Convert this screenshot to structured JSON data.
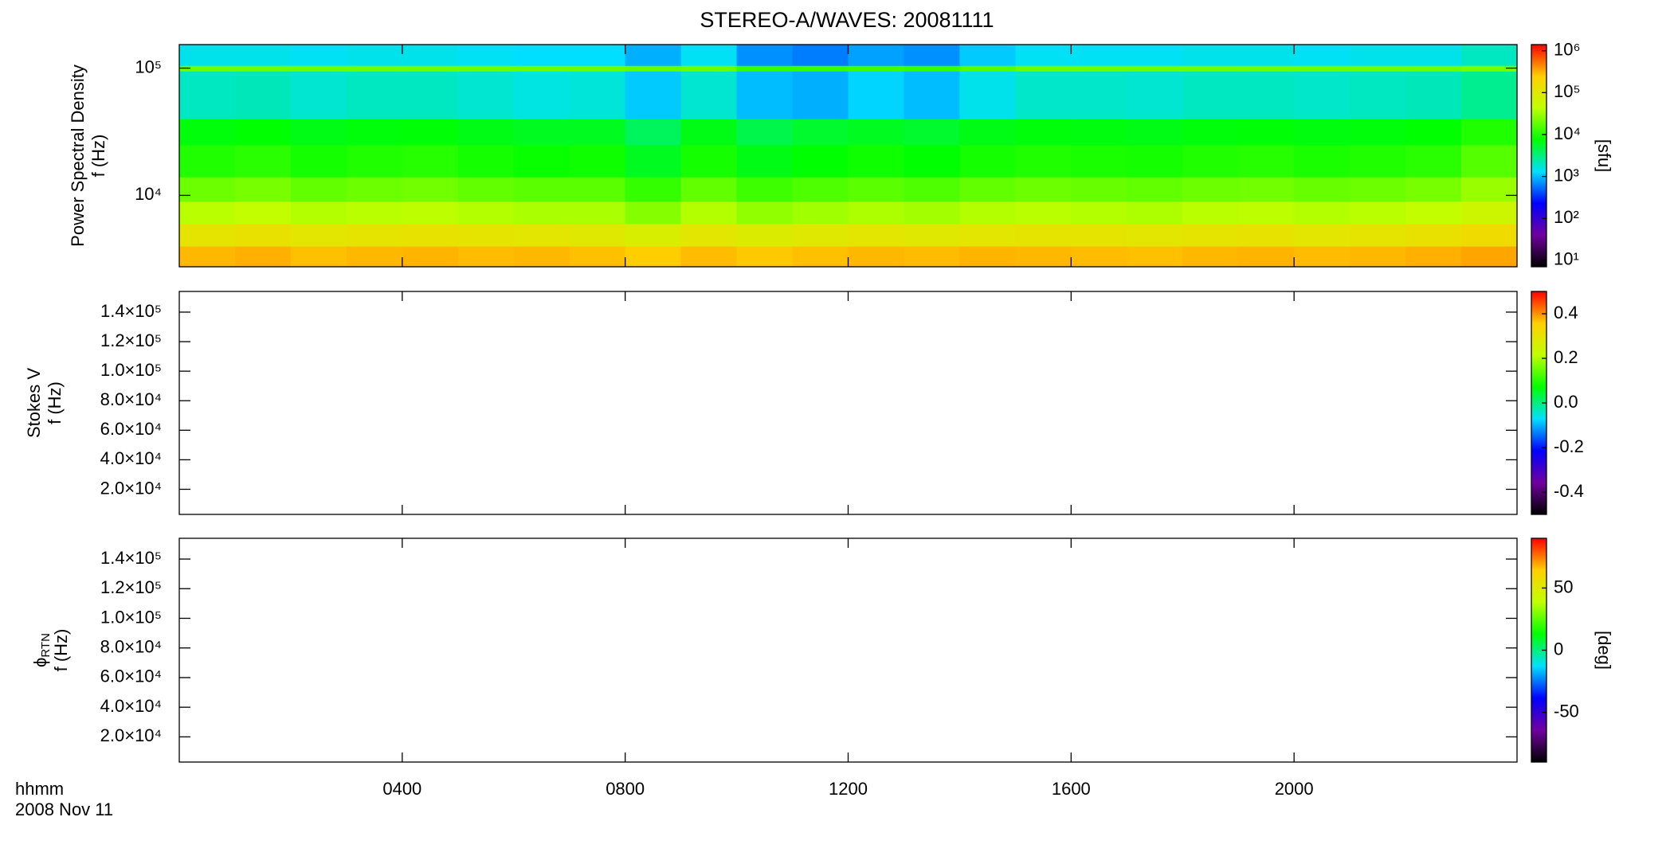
{
  "chart_data": [
    {
      "type": "heatmap",
      "title": "STEREO-A/WAVES: 20081111",
      "quantity": "Power Spectral Density",
      "ylabel": "f (Hz)",
      "clabel": "[sfu]",
      "ylog": true,
      "ylim": [
        2750,
        153000
      ],
      "yticks": [
        {
          "value": 10000,
          "label": "10⁴"
        },
        {
          "value": 100000,
          "label": "10⁵"
        }
      ],
      "clog": true,
      "clim": [
        7,
        1400000
      ],
      "cticks": [
        {
          "value": 10,
          "label": "10¹"
        },
        {
          "value": 100,
          "label": "10²"
        },
        {
          "value": 1000,
          "label": "10³"
        },
        {
          "value": 10000,
          "label": "10⁴"
        },
        {
          "value": 100000,
          "label": "10⁵"
        },
        {
          "value": 1000000,
          "label": "10⁶"
        }
      ],
      "colormap": [
        "#000000",
        "#7000a0",
        "#0000ff",
        "#00e0ff",
        "#00ff00",
        "#c0ff00",
        "#ffd000",
        "#ff0000"
      ],
      "x_bins": [
        0,
        1,
        2,
        3,
        4,
        5,
        6,
        7,
        8,
        9,
        10,
        11,
        12,
        13,
        14,
        15,
        16,
        17,
        18,
        19,
        20,
        21,
        22,
        23,
        24
      ],
      "y_bins": [
        2750,
        4000,
        6000,
        9000,
        14000,
        25000,
        40000,
        95000,
        105000,
        153000
      ],
      "values": [
        [
          300000,
          320000,
          280000,
          300000,
          310000,
          290000,
          300000,
          280000,
          250000,
          290000,
          260000,
          280000,
          300000,
          290000,
          310000,
          300000,
          290000,
          280000,
          300000,
          310000,
          290000,
          300000,
          320000,
          350000
        ],
        [
          120000,
          130000,
          110000,
          120000,
          125000,
          115000,
          110000,
          100000,
          80000,
          110000,
          90000,
          100000,
          110000,
          100000,
          110000,
          120000,
          115000,
          110000,
          120000,
          125000,
          110000,
          120000,
          130000,
          160000
        ],
        [
          40000,
          45000,
          38000,
          40000,
          42000,
          38000,
          35000,
          35000,
          25000,
          38000,
          28000,
          32000,
          36000,
          33000,
          38000,
          40000,
          38000,
          36000,
          40000,
          42000,
          38000,
          40000,
          45000,
          60000
        ],
        [
          20000,
          22000,
          18000,
          20000,
          21000,
          18000,
          17000,
          17000,
          12000,
          18000,
          13000,
          15000,
          17000,
          15000,
          18000,
          20000,
          19000,
          18000,
          20000,
          21000,
          19000,
          20000,
          22000,
          30000
        ],
        [
          10000,
          11000,
          9000,
          10000,
          10500,
          9000,
          8000,
          8500,
          6000,
          9000,
          6500,
          7500,
          8500,
          7500,
          9000,
          10000,
          9500,
          9000,
          10000,
          10500,
          9500,
          10000,
          11000,
          16000
        ],
        [
          7000,
          7500,
          6500,
          7000,
          7200,
          6500,
          6000,
          6000,
          4000,
          6500,
          4500,
          5500,
          6000,
          5500,
          6500,
          7000,
          6800,
          6500,
          7000,
          7200,
          6800,
          7000,
          7500,
          10000
        ],
        [
          2000,
          2100,
          1800,
          2000,
          2000,
          1800,
          1600,
          1700,
          1100,
          1800,
          1000,
          900,
          1200,
          1000,
          1500,
          1900,
          1900,
          1800,
          2000,
          2000,
          1900,
          2000,
          2100,
          2800
        ],
        [
          20000,
          20000,
          20000,
          20000,
          20000,
          20000,
          20000,
          20000,
          18000,
          20000,
          12000,
          12000,
          13000,
          12000,
          16000,
          20000,
          20000,
          20000,
          20000,
          20000,
          20000,
          20000,
          20000,
          22000
        ],
        [
          1500,
          1500,
          1400,
          1500,
          1500,
          1400,
          1300,
          1300,
          900,
          1400,
          700,
          600,
          800,
          700,
          1100,
          1400,
          1400,
          1400,
          1500,
          1500,
          1400,
          1500,
          1500,
          2000
        ]
      ]
    },
    {
      "type": "heatmap",
      "quantity": "Stokes V",
      "ylabel": "f (Hz)",
      "ylim": [
        3000,
        154000
      ],
      "yticks": [
        {
          "value": 20000,
          "label": "2.0×10⁴"
        },
        {
          "value": 40000,
          "label": "4.0×10⁴"
        },
        {
          "value": 60000,
          "label": "6.0×10⁴"
        },
        {
          "value": 80000,
          "label": "8.0×10⁴"
        },
        {
          "value": 100000,
          "label": "1.0×10⁵"
        },
        {
          "value": 120000,
          "label": "1.2×10⁵"
        },
        {
          "value": 140000,
          "label": "1.4×10⁵"
        }
      ],
      "clim": [
        -0.5,
        0.5
      ],
      "cticks": [
        -0.4,
        -0.2,
        {
          "value": 0,
          "label": "0.0"
        },
        0.2,
        0.4
      ],
      "colormap": [
        "#000000",
        "#7000a0",
        "#0000ff",
        "#00e0ff",
        "#00ff00",
        "#c0ff00",
        "#ffd000",
        "#ff0000"
      ]
    },
    {
      "type": "heatmap",
      "quantity": "ϕ",
      "quantity_sub": "RTN",
      "ylabel": "f (Hz)",
      "clabel": "[deg]",
      "ylim": [
        3000,
        154000
      ],
      "yticks": [
        {
          "value": 20000,
          "label": "2.0×10⁴"
        },
        {
          "value": 40000,
          "label": "4.0×10⁴"
        },
        {
          "value": 60000,
          "label": "6.0×10⁴"
        },
        {
          "value": 80000,
          "label": "8.0×10⁴"
        },
        {
          "value": 100000,
          "label": "1.0×10⁵"
        },
        {
          "value": 120000,
          "label": "1.2×10⁵"
        },
        {
          "value": 140000,
          "label": "1.4×10⁵"
        }
      ],
      "clim": [
        -90,
        90
      ],
      "cticks": [
        -50,
        0,
        50
      ],
      "colormap": [
        "#000000",
        "#7000a0",
        "#0000ff",
        "#00e0ff",
        "#00ff00",
        "#c0ff00",
        "#ffd000",
        "#ff0000"
      ],
      "xlabel": "hhmm",
      "date": "2008 Nov 11",
      "xlim": [
        0,
        24
      ],
      "xticks": [
        {
          "value": 4,
          "label": "0400"
        },
        {
          "value": 8,
          "label": "0800"
        },
        {
          "value": 12,
          "label": "1200"
        },
        {
          "value": 16,
          "label": "1600"
        },
        {
          "value": 20,
          "label": "2000"
        }
      ]
    }
  ]
}
